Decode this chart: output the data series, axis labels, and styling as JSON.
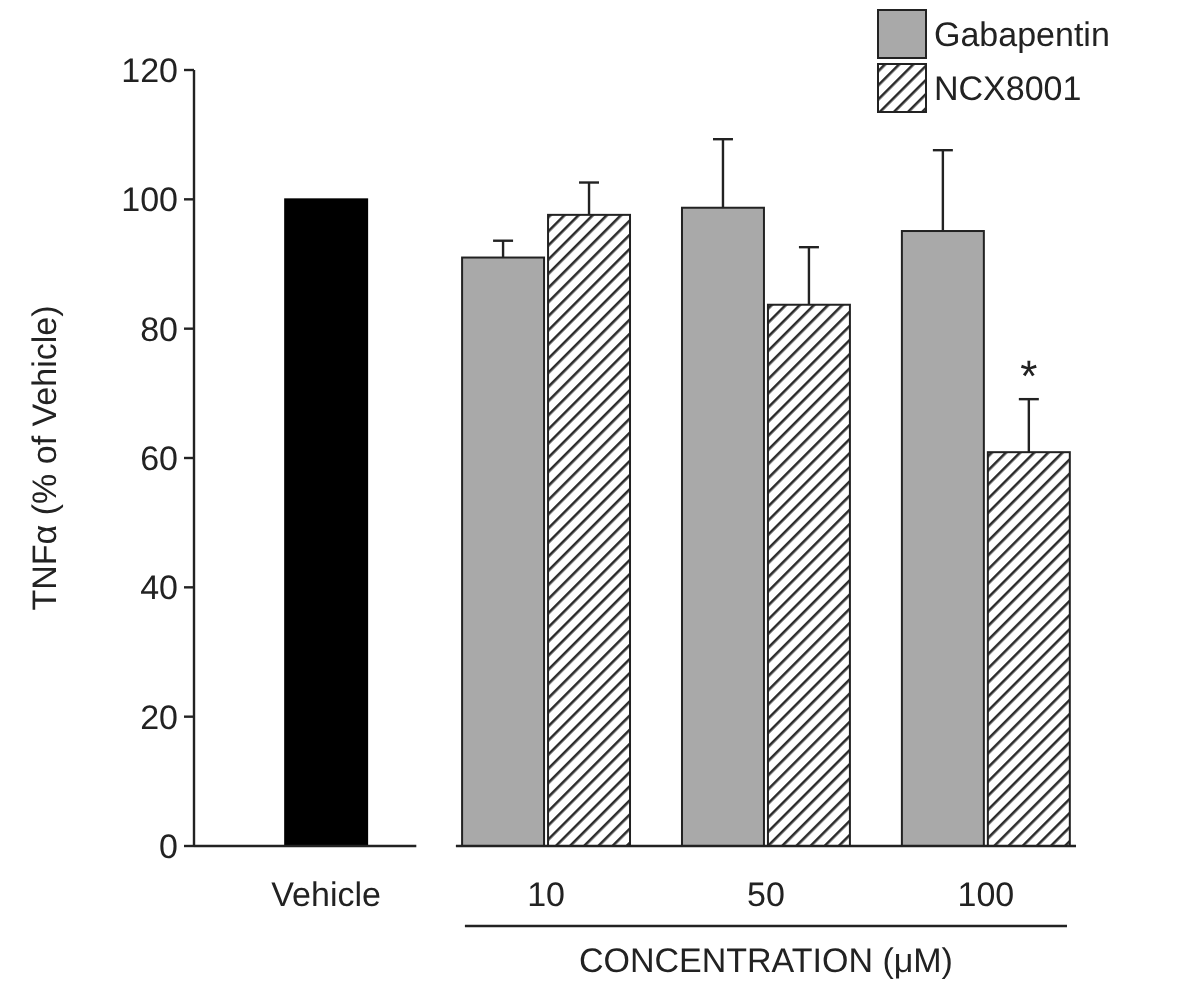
{
  "chart_data": {
    "type": "bar",
    "ylabel": "TNFα (% of Vehicle)",
    "xlabel": "CONCENTRATION (μM)",
    "categories": [
      "Vehicle",
      "10",
      "50",
      "100"
    ],
    "series": [
      {
        "color": "#000000",
        "values": [
          100,
          null,
          null,
          null
        ]
      },
      {
        "name": "Gabapentin",
        "color": "#a9a9a9",
        "values": [
          null,
          91,
          98.7,
          95.1
        ],
        "errors": [
          null,
          [
            91,
            93.6
          ],
          [
            98.7,
            109.3
          ],
          [
            95.1,
            107.6
          ]
        ]
      },
      {
        "name": "NCX8001",
        "color": "#2b2b2b",
        "values": [
          null,
          97.6,
          83.7,
          60.9
        ],
        "errors": [
          null,
          [
            97.6,
            102.6
          ],
          [
            83.7,
            92.6
          ],
          [
            60.9,
            69.1
          ]
        ]
      }
    ],
    "ylim": [
      0,
      120
    ],
    "yticks": [
      0,
      20,
      40,
      60,
      80,
      100,
      120
    ],
    "grid": false,
    "legend": "top right",
    "annotations": [
      {
        "text": "*",
        "x": "100",
        "y": 69.1
      }
    ]
  }
}
